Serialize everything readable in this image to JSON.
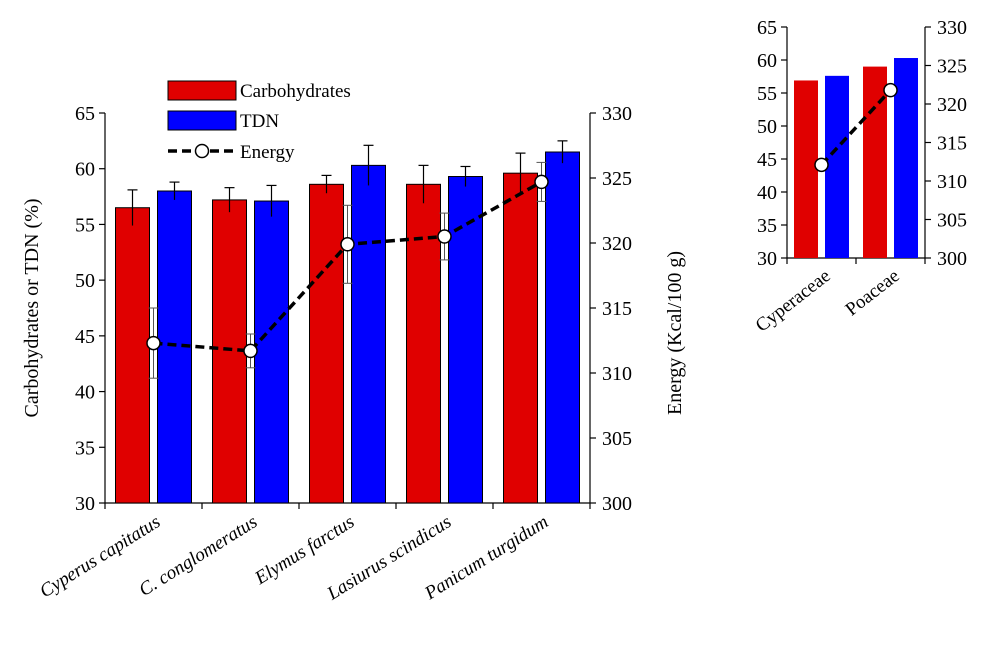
{
  "colors": {
    "carbohydrates": "#e00000",
    "tdn": "#0000ff",
    "energy": "#000000",
    "marker_fill": "#ffffff"
  },
  "chart_data": [
    {
      "type": "bar",
      "categories": [
        "Cyperus capitatus",
        "C. conglomeratus",
        "Elymus farctus",
        "Lasiurus scindicus",
        "Panicum turgidum"
      ],
      "ylabel": "Carbohydrates or TDN (%)",
      "y2label": "Energy (Kcal/100 g)",
      "ylim": [
        30,
        65
      ],
      "y2lim": [
        300,
        330
      ],
      "yticks": [
        "30",
        "35",
        "40",
        "45",
        "50",
        "55",
        "60",
        "65"
      ],
      "y2ticks": [
        "300",
        "305",
        "310",
        "315",
        "320",
        "325",
        "330"
      ],
      "legend_position": "top-left",
      "grid": false,
      "series": [
        {
          "name": "Carbohydrates",
          "kind": "bar",
          "values": [
            56.5,
            57.2,
            58.6,
            58.6,
            59.6
          ],
          "errors": [
            1.6,
            1.1,
            0.8,
            1.7,
            1.8
          ]
        },
        {
          "name": "TDN",
          "kind": "bar",
          "values": [
            58.0,
            57.1,
            60.3,
            59.3,
            61.5
          ],
          "errors": [
            0.8,
            1.4,
            1.8,
            0.9,
            1.0
          ]
        },
        {
          "name": "Energy",
          "kind": "line",
          "axis": "right",
          "values": [
            312.3,
            311.7,
            319.9,
            320.5,
            324.7
          ],
          "errors": [
            2.7,
            1.3,
            3.0,
            1.8,
            1.5
          ]
        }
      ]
    },
    {
      "type": "bar",
      "categories": [
        "Cyperaceae",
        "Poaceae"
      ],
      "ylim": [
        30,
        65
      ],
      "y2lim": [
        300,
        330
      ],
      "yticks": [
        "30",
        "35",
        "40",
        "45",
        "50",
        "55",
        "60",
        "65"
      ],
      "y2ticks": [
        "300",
        "305",
        "310",
        "315",
        "320",
        "325",
        "330"
      ],
      "grid": false,
      "series": [
        {
          "name": "Carbohydrates",
          "kind": "bar",
          "values": [
            56.9,
            59.0
          ]
        },
        {
          "name": "TDN",
          "kind": "bar",
          "values": [
            57.6,
            60.3
          ]
        },
        {
          "name": "Energy",
          "kind": "line",
          "axis": "right",
          "values": [
            312.1,
            321.8
          ]
        }
      ]
    }
  ]
}
